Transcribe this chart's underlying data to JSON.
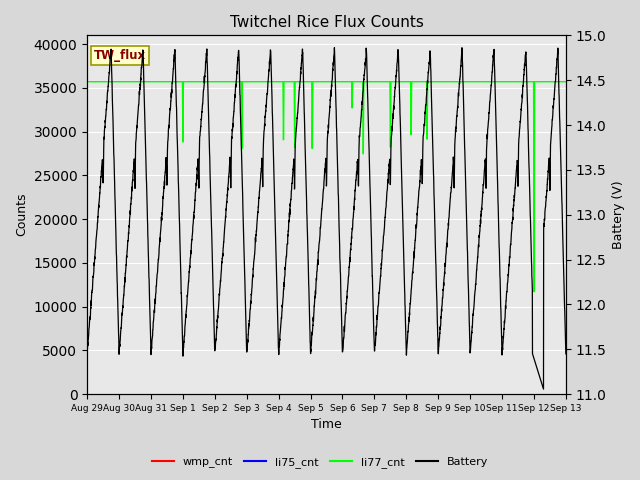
{
  "title": "Twitchel Rice Flux Counts",
  "xlabel": "Time",
  "ylabel_left": "Counts",
  "ylabel_right": "Battery (V)",
  "ylim_left": [
    0,
    41000
  ],
  "ylim_right": [
    11.0,
    15.0
  ],
  "yticks_left": [
    0,
    5000,
    10000,
    15000,
    20000,
    25000,
    30000,
    35000,
    40000
  ],
  "yticks_right": [
    11.0,
    11.5,
    12.0,
    12.5,
    13.0,
    13.5,
    14.0,
    14.5,
    15.0
  ],
  "background_color": "#d8d8d8",
  "plot_bg_color": "#e8e8e8",
  "annotation_text": "TW_flux",
  "annotation_color": "#8B0000",
  "annotation_bg": "#ffffcc",
  "annotation_border": "#999900",
  "li77_value": 35700,
  "batt_min": 11.0,
  "batt_max": 15.0,
  "n_days": 15,
  "xtick_labels": [
    "Aug 29",
    "Aug 30",
    "Aug 31",
    "Sep 1",
    "Sep 2",
    "Sep 3",
    "Sep 4",
    "Sep 5",
    "Sep 6",
    "Sep 7",
    "Sep 8",
    "Sep 9",
    "Sep 10",
    "Sep 11",
    "Sep 12",
    "Sep 13"
  ]
}
